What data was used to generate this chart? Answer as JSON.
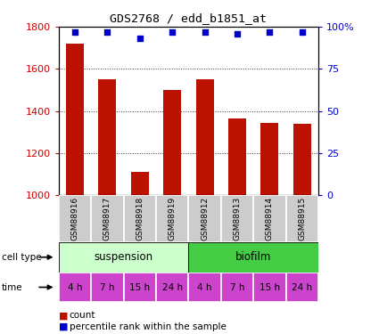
{
  "title": "GDS2768 / edd_b1851_at",
  "samples": [
    "GSM88916",
    "GSM88917",
    "GSM88918",
    "GSM88919",
    "GSM88912",
    "GSM88913",
    "GSM88914",
    "GSM88915"
  ],
  "counts": [
    1720,
    1550,
    1110,
    1500,
    1550,
    1365,
    1345,
    1340
  ],
  "percentile_ranks": [
    97,
    97,
    93,
    97,
    97,
    96,
    97,
    97
  ],
  "ylim_left": [
    1000,
    1800
  ],
  "ylim_right": [
    0,
    100
  ],
  "yticks_left": [
    1000,
    1200,
    1400,
    1600,
    1800
  ],
  "yticks_right": [
    0,
    25,
    50,
    75,
    100
  ],
  "bar_color": "#bb1100",
  "dot_color": "#0000cc",
  "cell_types": [
    {
      "label": "suspension",
      "span": [
        0,
        4
      ],
      "color": "#ccffcc"
    },
    {
      "label": "biofilm",
      "span": [
        4,
        8
      ],
      "color": "#44cc44"
    }
  ],
  "time_labels": [
    "4 h",
    "7 h",
    "15 h",
    "24 h",
    "4 h",
    "7 h",
    "15 h",
    "24 h"
  ],
  "time_color": "#cc44cc",
  "gsm_bg_color": "#cccccc",
  "legend_count_color": "#bb1100",
  "legend_pct_color": "#0000cc",
  "grid_color": "#333333",
  "left_label_color": "#cc0000",
  "right_label_color": "#0000cc"
}
